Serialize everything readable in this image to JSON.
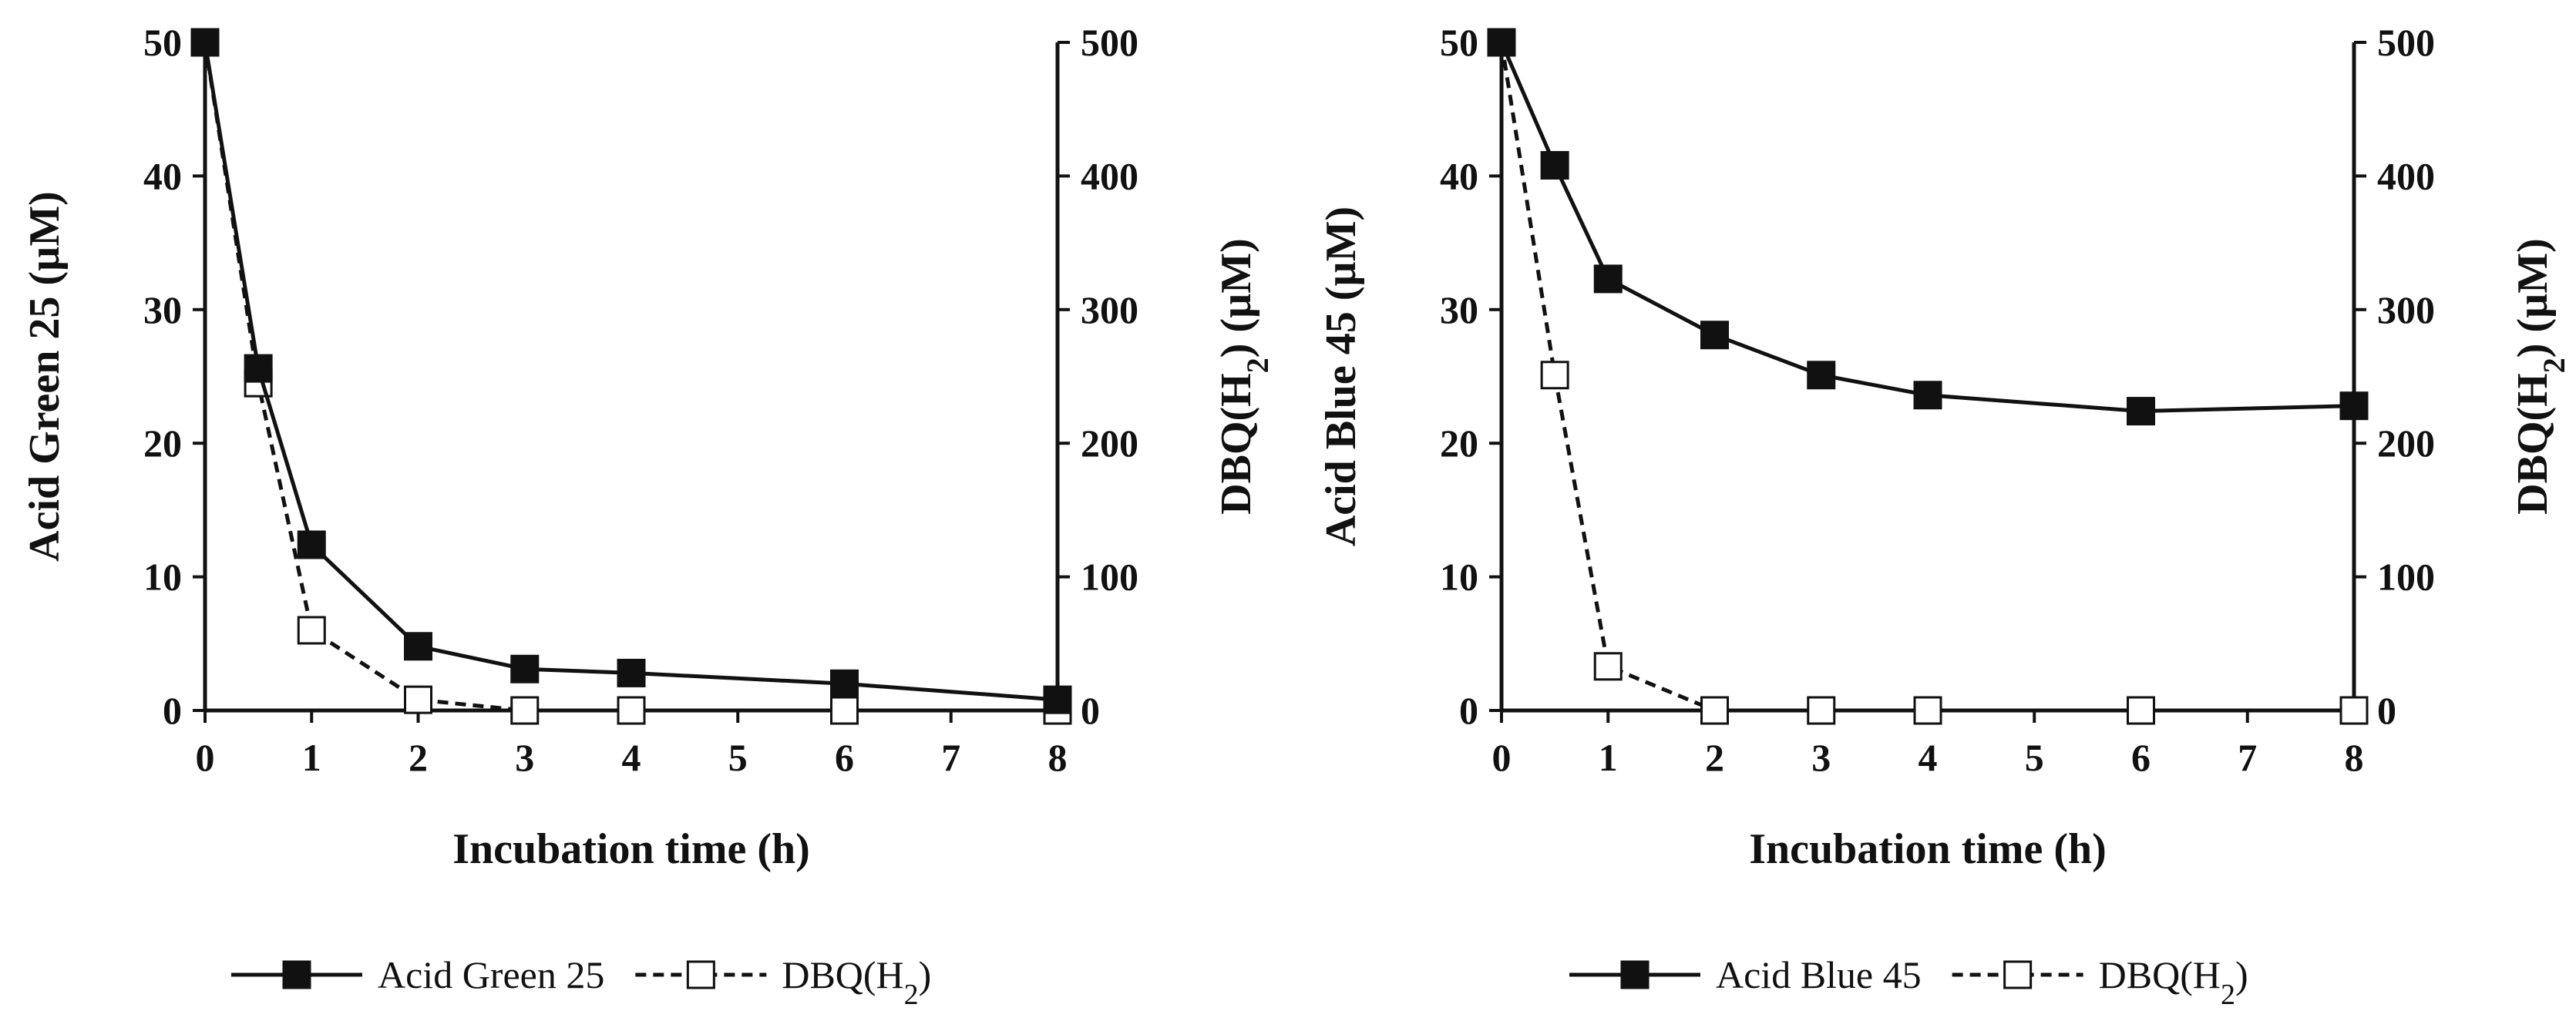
{
  "chart_data": [
    {
      "type": "line",
      "xlabel": "Incubation time (h)",
      "ylabel_left": "Acid Green 25 (µM)",
      "ylabel_right": "DBQ(H2) (µM)",
      "xlim": [
        0,
        8
      ],
      "ylim_left": [
        0,
        50
      ],
      "ylim_right": [
        0,
        500
      ],
      "x_ticks": [
        "0",
        "1",
        "2",
        "3",
        "4",
        "5",
        "6",
        "7",
        "8"
      ],
      "y_ticks_left": [
        "0",
        "10",
        "20",
        "30",
        "40",
        "50"
      ],
      "y_ticks_right": [
        "0",
        "100",
        "200",
        "300",
        "400",
        "500"
      ],
      "grid": false,
      "legend_position": "bottom",
      "series": [
        {
          "name": "Acid Green 25",
          "axis": "left",
          "marker": "filled-square",
          "line": "solid",
          "x": [
            0,
            0.5,
            1,
            2,
            3,
            4,
            6,
            8
          ],
          "values": [
            50,
            25.6,
            12.4,
            4.8,
            3.1,
            2.8,
            2.0,
            0.8
          ]
        },
        {
          "name": "DBQ(H2)",
          "axis": "right",
          "marker": "open-square",
          "line": "dashed",
          "x": [
            0,
            0.5,
            1,
            2,
            3,
            4,
            6,
            8
          ],
          "values": [
            500,
            245,
            60,
            8,
            0,
            0,
            0,
            0
          ]
        }
      ]
    },
    {
      "type": "line",
      "xlabel": "Incubation time (h)",
      "ylabel_left": "Acid Blue 45 (µM)",
      "ylabel_right": "DBQ(H2) (µM)",
      "xlim": [
        0,
        8
      ],
      "ylim_left": [
        0,
        50
      ],
      "ylim_right": [
        0,
        500
      ],
      "x_ticks": [
        "0",
        "1",
        "2",
        "3",
        "4",
        "5",
        "6",
        "7",
        "8"
      ],
      "y_ticks_left": [
        "0",
        "10",
        "20",
        "30",
        "40",
        "50"
      ],
      "y_ticks_right": [
        "0",
        "100",
        "200",
        "300",
        "400",
        "500"
      ],
      "grid": false,
      "legend_position": "bottom",
      "series": [
        {
          "name": "Acid Blue 45",
          "axis": "left",
          "marker": "filled-square",
          "line": "solid",
          "x": [
            0,
            0.5,
            1,
            2,
            3,
            4,
            6,
            8
          ],
          "values": [
            50,
            40.8,
            32.3,
            28.1,
            25.1,
            23.6,
            22.4,
            22.8
          ]
        },
        {
          "name": "DBQ(H2)",
          "axis": "right",
          "marker": "open-square",
          "line": "dashed",
          "x": [
            0,
            0.5,
            1,
            2,
            3,
            4,
            6,
            8
          ],
          "values": [
            500,
            251,
            33,
            0,
            0,
            0,
            0,
            0
          ]
        }
      ]
    }
  ]
}
